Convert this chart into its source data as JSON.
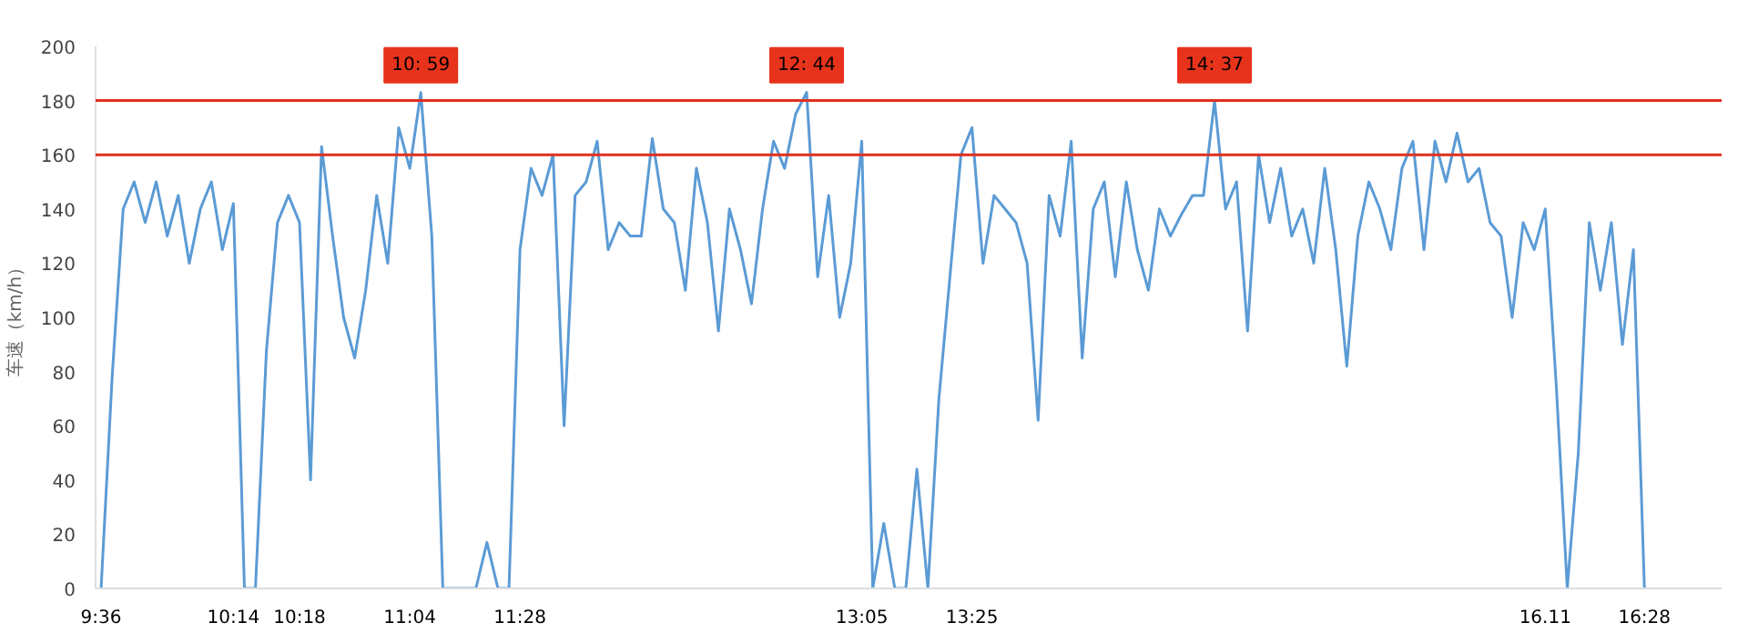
{
  "chart_data": {
    "type": "line",
    "ylabel": "车速（km/h）",
    "categories": [
      "9:36",
      null,
      null,
      null,
      null,
      null,
      null,
      null,
      null,
      null,
      null,
      null,
      "10:14",
      null,
      null,
      null,
      null,
      null,
      "10:18",
      null,
      null,
      null,
      null,
      null,
      null,
      null,
      null,
      null,
      "11:04",
      null,
      null,
      null,
      null,
      null,
      null,
      null,
      null,
      null,
      "11:28",
      null,
      null,
      null,
      null,
      null,
      null,
      null,
      null,
      null,
      null,
      null,
      null,
      null,
      null,
      null,
      null,
      null,
      null,
      null,
      null,
      null,
      null,
      null,
      null,
      null,
      null,
      null,
      null,
      null,
      null,
      "13:05",
      null,
      null,
      null,
      null,
      null,
      null,
      null,
      null,
      null,
      "13:25",
      null,
      null,
      null,
      null,
      null,
      null,
      null,
      null,
      null,
      null,
      null,
      null,
      null,
      null,
      null,
      null,
      null,
      null,
      null,
      null,
      null,
      null,
      null,
      null,
      null,
      null,
      null,
      null,
      null,
      null,
      null,
      null,
      null,
      null,
      null,
      null,
      null,
      null,
      null,
      null,
      null,
      null,
      null,
      null,
      null,
      null,
      null,
      null,
      null,
      null,
      null,
      "16.11",
      null,
      null,
      null,
      null,
      null,
      null,
      null,
      null,
      "16:28"
    ],
    "series": [
      {
        "color": "#5b9bd5",
        "values": [
          0,
          78,
          140,
          150,
          135,
          150,
          130,
          145,
          120,
          140,
          150,
          125,
          142,
          0,
          0,
          88,
          135,
          145,
          135,
          40,
          163,
          130,
          100,
          85,
          110,
          145,
          120,
          170,
          155,
          183,
          130,
          0,
          0,
          0,
          0,
          17,
          0,
          0,
          125,
          155,
          145,
          160,
          60,
          145,
          150,
          165,
          125,
          135,
          130,
          130,
          166,
          140,
          135,
          110,
          155,
          135,
          95,
          140,
          125,
          105,
          140,
          165,
          155,
          175,
          183,
          115,
          145,
          100,
          120,
          165,
          0,
          24,
          0,
          0,
          44,
          0,
          70,
          115,
          160,
          170,
          120,
          145,
          140,
          135,
          120,
          62,
          145,
          130,
          165,
          85,
          140,
          150,
          115,
          150,
          125,
          110,
          140,
          130,
          138,
          145,
          145,
          180,
          140,
          150,
          95,
          160,
          135,
          155,
          130,
          140,
          120,
          155,
          125,
          82,
          130,
          150,
          140,
          125,
          155,
          165,
          125,
          165,
          150,
          168,
          150,
          155,
          135,
          130,
          100,
          135,
          125,
          140,
          75,
          0,
          50,
          135,
          110,
          135,
          90,
          125,
          0
        ]
      }
    ],
    "ylim": [
      0,
      200
    ],
    "yticks": [
      0,
      20,
      40,
      60,
      80,
      100,
      120,
      140,
      160,
      180,
      200
    ],
    "ref_lines": [
      {
        "axis": "y",
        "value": 180,
        "color": "#e0301e"
      },
      {
        "axis": "y",
        "value": 160,
        "color": "#e0301e"
      }
    ],
    "annotations": [
      {
        "text": "10: 59",
        "y": 183
      },
      {
        "text": "12: 44",
        "y": 183
      },
      {
        "text": "14: 37",
        "y": 180
      }
    ],
    "grid": false
  }
}
